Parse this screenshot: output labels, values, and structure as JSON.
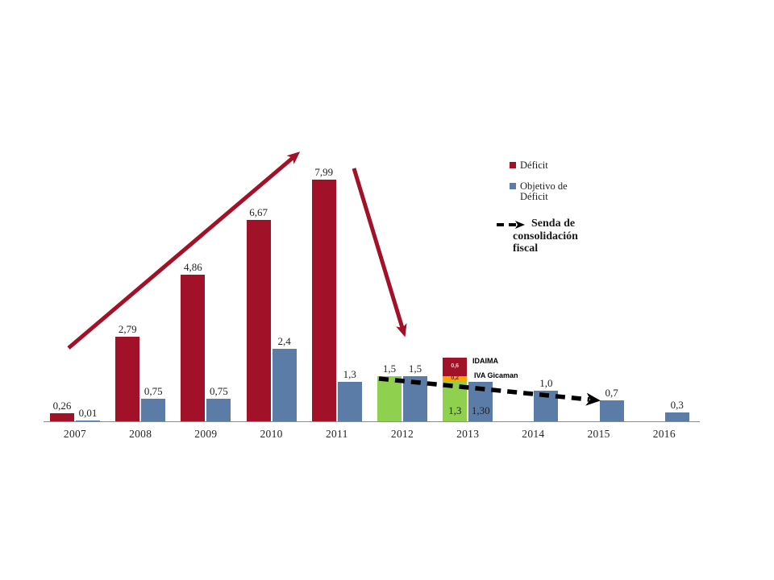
{
  "colors": {
    "deficit_red": "#A11228",
    "objetivo_blue": "#5C7CA8",
    "previsto_green": "#8FD04E",
    "iva_orange": "#FFA303",
    "axis_gray": "#8C8C8C",
    "senda_black": "#000000",
    "segment_label_light": "#F4C9C9",
    "segment_label_dark": "#5a3200"
  },
  "legend": {
    "deficit": "Déficit",
    "objetivo": "Objetivo de\nDéficit",
    "senda": "Senda de\nconsolidación\nfiscal"
  },
  "annotations": {
    "idaima": "IDAIMA",
    "iva_gicaman": "IVA Gicaman"
  },
  "chart_data": {
    "type": "bar",
    "title": "",
    "xlabel": "",
    "ylabel": "",
    "ylim": [
      0,
      8.5
    ],
    "grid": false,
    "legend_position": "upper right",
    "categories": [
      "2007",
      "2008",
      "2009",
      "2010",
      "2011",
      "2012",
      "2013",
      "2014",
      "2015",
      "2016"
    ],
    "series_names": [
      "Déficit",
      "Objetivo de Déficit"
    ],
    "bars": [
      {
        "year": "2007",
        "left": [
          {
            "series": "deficit",
            "color": "red",
            "value": 0.26,
            "label": "0,26",
            "label_pos": "above"
          }
        ],
        "right": {
          "series": "objetivo",
          "color": "blue",
          "value": 0.01,
          "label": "0,01",
          "label_pos": "above"
        }
      },
      {
        "year": "2008",
        "left": [
          {
            "series": "deficit",
            "color": "red",
            "value": 2.79,
            "label": "2,79",
            "label_pos": "above"
          }
        ],
        "right": {
          "series": "objetivo",
          "color": "blue",
          "value": 0.75,
          "label": "0,75",
          "label_pos": "above"
        }
      },
      {
        "year": "2009",
        "left": [
          {
            "series": "deficit",
            "color": "red",
            "value": 4.86,
            "label": "4,86",
            "label_pos": "above"
          }
        ],
        "right": {
          "series": "objetivo",
          "color": "blue",
          "value": 0.75,
          "label": "0,75",
          "label_pos": "above"
        }
      },
      {
        "year": "2010",
        "left": [
          {
            "series": "deficit",
            "color": "red",
            "value": 6.67,
            "label": "6,67",
            "label_pos": "above"
          }
        ],
        "right": {
          "series": "objetivo",
          "color": "blue",
          "value": 2.4,
          "label": "2,4",
          "label_pos": "above"
        }
      },
      {
        "year": "2011",
        "left": [
          {
            "series": "deficit",
            "color": "red",
            "value": 7.99,
            "label": "7,99",
            "label_pos": "above"
          }
        ],
        "right": {
          "series": "objetivo",
          "color": "blue",
          "value": 1.3,
          "label": "1,3",
          "label_pos": "above"
        }
      },
      {
        "year": "2012",
        "left": [
          {
            "series": "previsto",
            "color": "green",
            "value": 1.5,
            "label": "1,5",
            "label_pos": "above"
          }
        ],
        "right": {
          "series": "objetivo",
          "color": "blue",
          "value": 1.5,
          "label": "1,5",
          "label_pos": "above"
        }
      },
      {
        "year": "2013",
        "left": [
          {
            "series": "previsto",
            "color": "green",
            "value": 1.3,
            "label": "1,3",
            "label_pos": "inside"
          },
          {
            "series": "iva-gicaman",
            "color": "orange",
            "value": 0.2,
            "label": "0,2",
            "label_pos": "segment",
            "label_tone": "dark"
          },
          {
            "series": "idaima",
            "color": "red",
            "value": 0.6,
            "label": "0,6",
            "label_pos": "segment",
            "label_tone": "light"
          }
        ],
        "right": {
          "series": "objetivo",
          "color": "blue",
          "value": 1.3,
          "label": "1,30",
          "label_pos": "inside"
        }
      },
      {
        "year": "2014",
        "left": [],
        "right": {
          "series": "objetivo",
          "color": "blue",
          "value": 1.0,
          "label": "1,0",
          "label_pos": "above"
        }
      },
      {
        "year": "2015",
        "left": [],
        "right": {
          "series": "objetivo",
          "color": "blue",
          "value": 0.7,
          "label": "0,7",
          "label_pos": "above"
        }
      },
      {
        "year": "2016",
        "left": [],
        "right": {
          "series": "objetivo",
          "color": "blue",
          "value": 0.3,
          "label": "0,3",
          "label_pos": "above"
        }
      }
    ]
  }
}
